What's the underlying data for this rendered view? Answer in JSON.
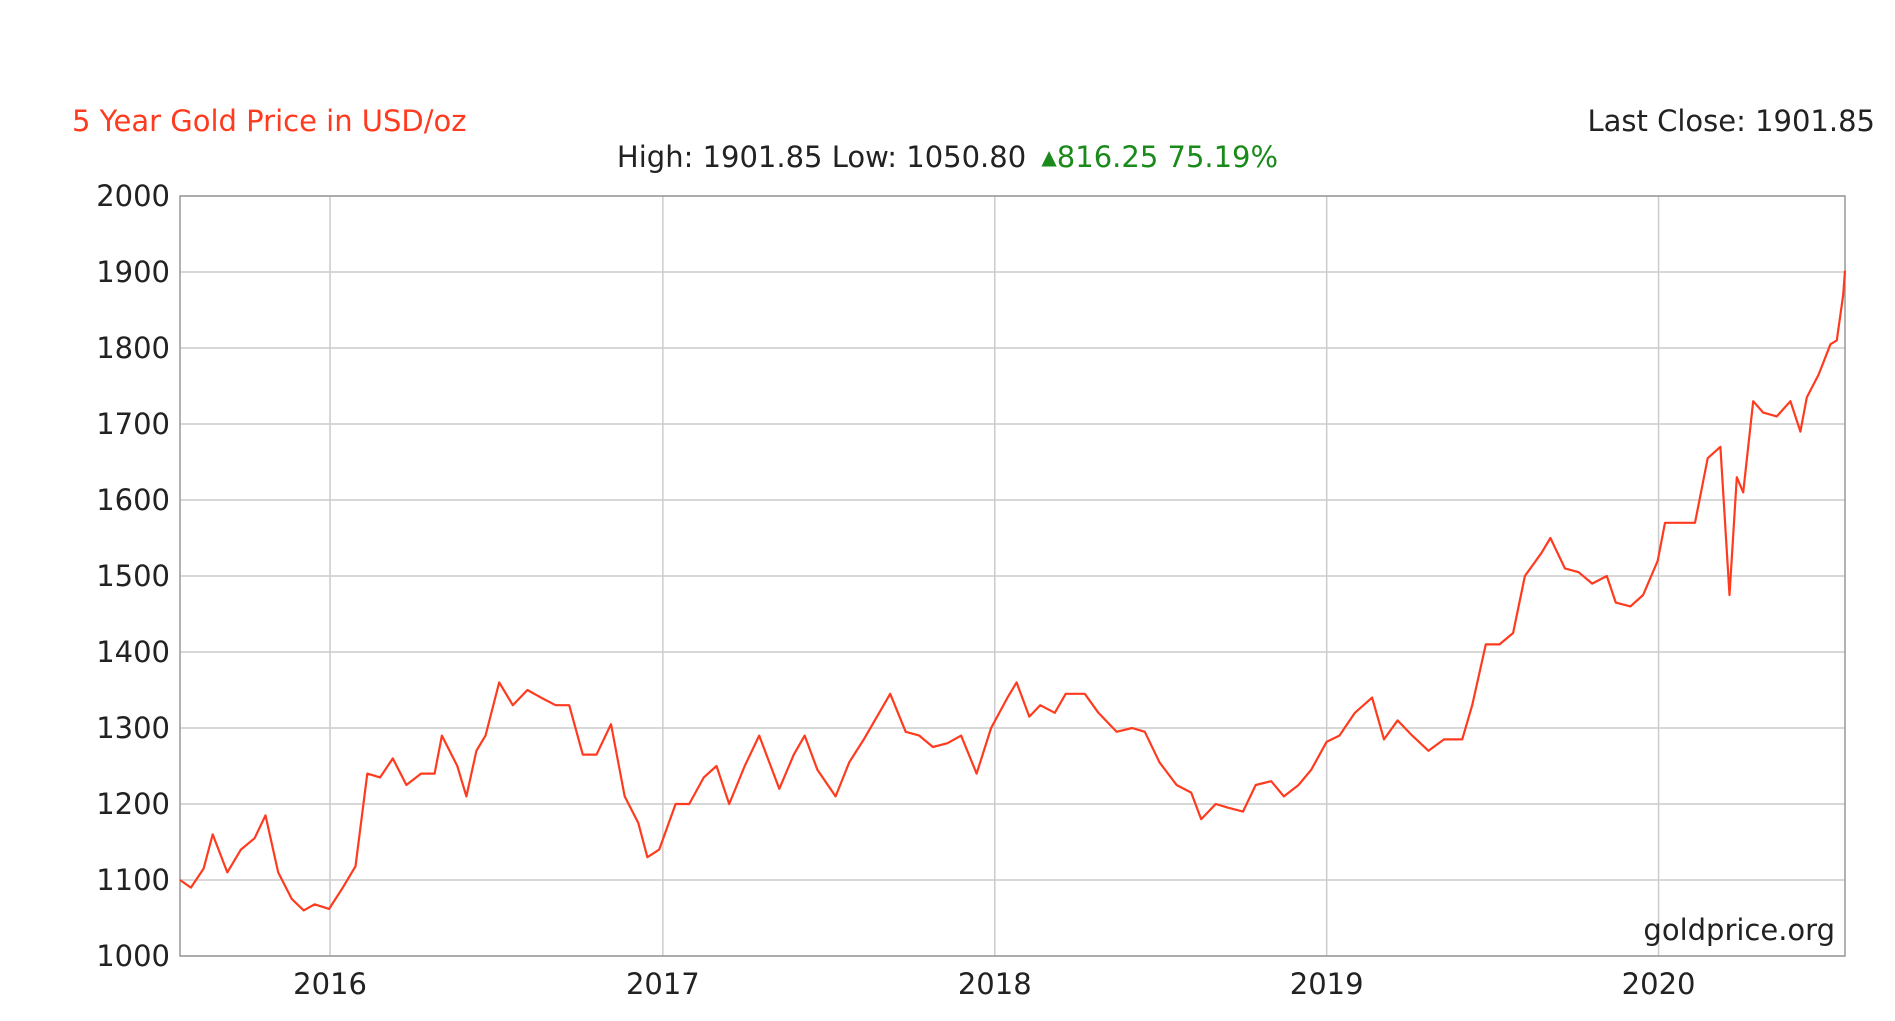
{
  "header": {
    "title": "5 Year Gold Price in USD/oz",
    "last_close": "Last Close: 1901.85",
    "high_label": "High:",
    "high_value": "1901.85",
    "low_label": "Low:",
    "low_value": "1050.80",
    "change": "816.25 75.19%"
  },
  "watermark": "goldprice.org",
  "colors": {
    "line": "#ff3b1f",
    "grid": "#cccccc",
    "change": "#1a8a1a"
  },
  "chart_data": {
    "type": "line",
    "title": "5 Year Gold Price in USD/oz",
    "xlabel": "",
    "ylabel": "",
    "ylim": [
      1000,
      2000
    ],
    "xlim": [
      "2015-07-20",
      "2020-07-24"
    ],
    "grid": true,
    "y_ticks": [
      1000,
      1100,
      1200,
      1300,
      1400,
      1500,
      1600,
      1700,
      1800,
      1900,
      2000
    ],
    "x_ticks": [
      {
        "label": "2016",
        "date": "2016-01-01"
      },
      {
        "label": "2017",
        "date": "2017-01-01"
      },
      {
        "label": "2018",
        "date": "2018-01-01"
      },
      {
        "label": "2019",
        "date": "2019-01-01"
      },
      {
        "label": "2020",
        "date": "2020-01-01"
      }
    ],
    "series": [
      {
        "points": [
          [
            "2015-07-20",
            1100
          ],
          [
            "2015-08-01",
            1090
          ],
          [
            "2015-08-15",
            1115
          ],
          [
            "2015-08-25",
            1160
          ],
          [
            "2015-09-10",
            1110
          ],
          [
            "2015-09-25",
            1140
          ],
          [
            "2015-10-10",
            1155
          ],
          [
            "2015-10-22",
            1185
          ],
          [
            "2015-11-05",
            1110
          ],
          [
            "2015-11-20",
            1075
          ],
          [
            "2015-12-03",
            1060
          ],
          [
            "2015-12-15",
            1068
          ],
          [
            "2015-12-31",
            1062
          ],
          [
            "2016-01-15",
            1090
          ],
          [
            "2016-01-29",
            1118
          ],
          [
            "2016-02-11",
            1240
          ],
          [
            "2016-02-25",
            1235
          ],
          [
            "2016-03-10",
            1260
          ],
          [
            "2016-03-25",
            1225
          ],
          [
            "2016-04-10",
            1240
          ],
          [
            "2016-04-25",
            1240
          ],
          [
            "2016-05-03",
            1290
          ],
          [
            "2016-05-20",
            1250
          ],
          [
            "2016-05-30",
            1210
          ],
          [
            "2016-06-10",
            1270
          ],
          [
            "2016-06-20",
            1290
          ],
          [
            "2016-07-05",
            1360
          ],
          [
            "2016-07-20",
            1330
          ],
          [
            "2016-08-05",
            1350
          ],
          [
            "2016-08-20",
            1340
          ],
          [
            "2016-09-05",
            1330
          ],
          [
            "2016-09-20",
            1330
          ],
          [
            "2016-10-05",
            1265
          ],
          [
            "2016-10-20",
            1265
          ],
          [
            "2016-11-05",
            1305
          ],
          [
            "2016-11-20",
            1210
          ],
          [
            "2016-12-05",
            1175
          ],
          [
            "2016-12-15",
            1130
          ],
          [
            "2016-12-28",
            1140
          ],
          [
            "2017-01-15",
            1200
          ],
          [
            "2017-01-30",
            1200
          ],
          [
            "2017-02-15",
            1235
          ],
          [
            "2017-03-01",
            1250
          ],
          [
            "2017-03-15",
            1200
          ],
          [
            "2017-04-01",
            1250
          ],
          [
            "2017-04-17",
            1290
          ],
          [
            "2017-05-09",
            1220
          ],
          [
            "2017-05-25",
            1265
          ],
          [
            "2017-06-06",
            1290
          ],
          [
            "2017-06-20",
            1245
          ],
          [
            "2017-07-10",
            1210
          ],
          [
            "2017-07-25",
            1255
          ],
          [
            "2017-08-10",
            1285
          ],
          [
            "2017-09-08",
            1345
          ],
          [
            "2017-09-25",
            1295
          ],
          [
            "2017-10-10",
            1290
          ],
          [
            "2017-10-25",
            1275
          ],
          [
            "2017-11-10",
            1280
          ],
          [
            "2017-11-25",
            1290
          ],
          [
            "2017-12-12",
            1240
          ],
          [
            "2017-12-28",
            1300
          ],
          [
            "2018-01-15",
            1340
          ],
          [
            "2018-01-25",
            1360
          ],
          [
            "2018-02-08",
            1315
          ],
          [
            "2018-02-20",
            1330
          ],
          [
            "2018-03-08",
            1320
          ],
          [
            "2018-03-20",
            1345
          ],
          [
            "2018-04-10",
            1345
          ],
          [
            "2018-04-25",
            1320
          ],
          [
            "2018-05-15",
            1295
          ],
          [
            "2018-06-01",
            1300
          ],
          [
            "2018-06-15",
            1295
          ],
          [
            "2018-07-01",
            1255
          ],
          [
            "2018-07-20",
            1225
          ],
          [
            "2018-08-05",
            1215
          ],
          [
            "2018-08-16",
            1180
          ],
          [
            "2018-09-01",
            1200
          ],
          [
            "2018-09-15",
            1195
          ],
          [
            "2018-10-01",
            1190
          ],
          [
            "2018-10-15",
            1225
          ],
          [
            "2018-11-01",
            1230
          ],
          [
            "2018-11-15",
            1210
          ],
          [
            "2018-12-01",
            1225
          ],
          [
            "2018-12-15",
            1245
          ],
          [
            "2019-01-01",
            1282
          ],
          [
            "2019-01-15",
            1290
          ],
          [
            "2019-02-01",
            1320
          ],
          [
            "2019-02-20",
            1340
          ],
          [
            "2019-03-05",
            1285
          ],
          [
            "2019-03-20",
            1310
          ],
          [
            "2019-04-05",
            1290
          ],
          [
            "2019-04-23",
            1270
          ],
          [
            "2019-05-10",
            1285
          ],
          [
            "2019-05-30",
            1285
          ],
          [
            "2019-06-10",
            1330
          ],
          [
            "2019-06-25",
            1410
          ],
          [
            "2019-07-10",
            1410
          ],
          [
            "2019-07-25",
            1425
          ],
          [
            "2019-08-07",
            1500
          ],
          [
            "2019-08-25",
            1530
          ],
          [
            "2019-09-04",
            1550
          ],
          [
            "2019-09-20",
            1510
          ],
          [
            "2019-10-05",
            1505
          ],
          [
            "2019-10-20",
            1490
          ],
          [
            "2019-11-05",
            1500
          ],
          [
            "2019-11-15",
            1465
          ],
          [
            "2019-12-01",
            1460
          ],
          [
            "2019-12-15",
            1475
          ],
          [
            "2019-12-31",
            1520
          ],
          [
            "2020-01-08",
            1570
          ],
          [
            "2020-01-25",
            1570
          ],
          [
            "2020-02-10",
            1570
          ],
          [
            "2020-02-24",
            1655
          ],
          [
            "2020-03-09",
            1670
          ],
          [
            "2020-03-19",
            1475
          ],
          [
            "2020-03-27",
            1630
          ],
          [
            "2020-04-03",
            1610
          ],
          [
            "2020-04-14",
            1730
          ],
          [
            "2020-04-25",
            1715
          ],
          [
            "2020-05-10",
            1710
          ],
          [
            "2020-05-25",
            1730
          ],
          [
            "2020-06-05",
            1690
          ],
          [
            "2020-06-12",
            1735
          ],
          [
            "2020-06-25",
            1765
          ],
          [
            "2020-07-08",
            1805
          ],
          [
            "2020-07-15",
            1810
          ],
          [
            "2020-07-22",
            1870
          ],
          [
            "2020-07-24",
            1901.85
          ]
        ]
      }
    ]
  }
}
